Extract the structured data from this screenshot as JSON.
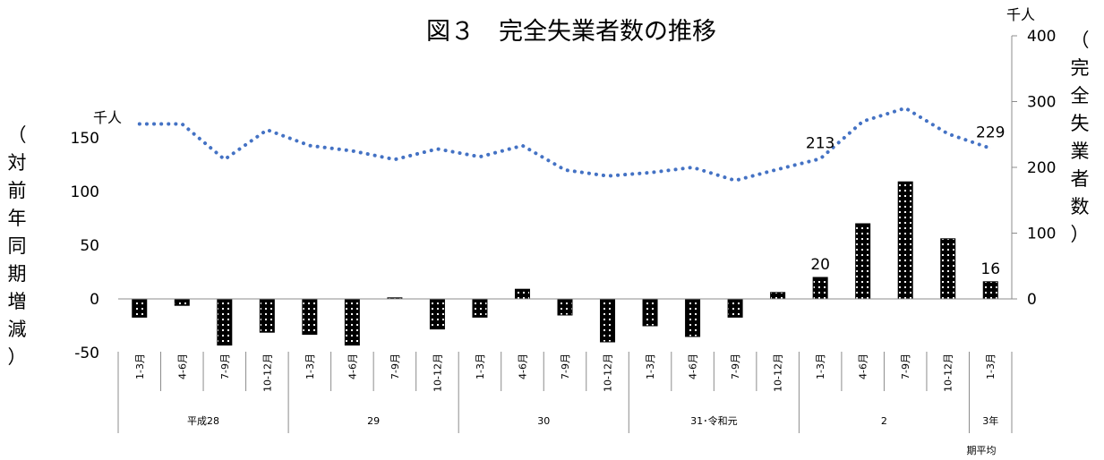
{
  "chart_data": {
    "type": "bar+line",
    "title": "図３　完全失業者数の推移",
    "left_axis": {
      "label": "（対前年同期増減）",
      "unit": "千人",
      "ticks": [
        "150",
        "100",
        "50",
        "0",
        "-50"
      ],
      "range": [
        -50,
        150
      ]
    },
    "right_axis": {
      "label": "（完全失業者数）",
      "unit": "千人",
      "ticks": [
        "400",
        "300",
        "200",
        "100",
        "0"
      ],
      "range": [
        0,
        400
      ]
    },
    "categories": [
      "1-3月",
      "4-6月",
      "7-9月",
      "10-12月",
      "1-3月",
      "4-6月",
      "7-9月",
      "10-12月",
      "1-3月",
      "4-6月",
      "7-9月",
      "10-12月",
      "1-3月",
      "4-6月",
      "7-9月",
      "10-12月",
      "1-3月",
      "4-6月",
      "7-9月",
      "10-12月",
      "1-3月"
    ],
    "groups": [
      {
        "label": "平成28",
        "start": 0,
        "count": 4
      },
      {
        "label": "29",
        "start": 4,
        "count": 4
      },
      {
        "label": "30",
        "start": 8,
        "count": 4
      },
      {
        "label": "31･令和元",
        "start": 12,
        "count": 4
      },
      {
        "label": "2",
        "start": 16,
        "count": 4
      },
      {
        "label": "3年",
        "start": 20,
        "count": 1
      }
    ],
    "footnote": "期平均",
    "series": [
      {
        "type": "bar",
        "axis": "left",
        "values": [
          -17,
          -6,
          -43,
          -31,
          -33,
          -43,
          1,
          -28,
          -17,
          9,
          -15,
          -40,
          -25,
          -35,
          -17,
          6,
          20,
          70,
          109,
          56,
          16
        ]
      },
      {
        "type": "line",
        "axis": "right",
        "style": "dotted",
        "color": "#4472C4",
        "values": [
          266,
          266,
          212,
          257,
          233,
          225,
          212,
          228,
          216,
          233,
          196,
          187,
          192,
          200,
          180,
          197,
          213,
          270,
          290,
          251,
          229
        ]
      }
    ],
    "data_labels": [
      {
        "series": 1,
        "index": 16,
        "text": "213"
      },
      {
        "series": 1,
        "index": 20,
        "text": "229"
      },
      {
        "series": 0,
        "index": 16,
        "text": "20"
      },
      {
        "series": 0,
        "index": 20,
        "text": "16"
      }
    ]
  }
}
